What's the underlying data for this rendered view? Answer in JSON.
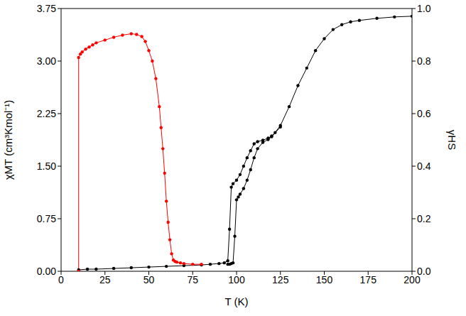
{
  "chart_data": {
    "type": "line",
    "x_label": "T (K)",
    "y_label": "χMT (cm³Kmol⁻¹)",
    "y2_label": "γHS",
    "xlim": [
      0,
      200
    ],
    "xticks": [
      0,
      25,
      50,
      75,
      100,
      125,
      150,
      175,
      200
    ],
    "ylim": [
      0,
      3.75
    ],
    "yticks": [
      {
        "value": 0,
        "label": "0.00"
      },
      0.75,
      {
        "value": 1.5,
        "label": "1.50"
      },
      2.25,
      {
        "value": 3,
        "label": "3.00"
      },
      3.75
    ],
    "y2lim": [
      0,
      1
    ],
    "y2ticks": [
      {
        "value": 0,
        "label": "0.0"
      },
      0.2,
      0.4,
      0.6,
      0.8,
      {
        "value": 1,
        "label": "1.0"
      }
    ],
    "grid": false,
    "series": [
      {
        "color": "#000000",
        "marker": "circle",
        "line_style": "solid",
        "x": [
          10,
          15,
          20,
          30,
          40,
          50,
          60,
          70,
          80,
          85,
          90,
          93,
          95,
          96,
          97,
          98,
          100,
          102,
          104,
          106,
          108,
          110,
          112,
          115,
          118,
          120,
          122,
          125,
          130,
          135,
          140,
          145,
          150,
          155,
          160,
          165,
          170,
          180,
          190,
          200
        ],
        "values": [
          0.02,
          0.03,
          0.03,
          0.04,
          0.05,
          0.06,
          0.07,
          0.08,
          0.09,
          0.1,
          0.11,
          0.12,
          0.15,
          0.6,
          1.2,
          1.25,
          1.3,
          1.38,
          1.5,
          1.62,
          1.72,
          1.82,
          1.85,
          1.87,
          1.9,
          1.93,
          1.98,
          2.08,
          2.35,
          2.65,
          2.9,
          3.15,
          3.32,
          3.45,
          3.52,
          3.56,
          3.58,
          3.61,
          3.63,
          3.64
        ]
      },
      {
        "color": "#000000",
        "marker": "circle",
        "line_style": "solid",
        "x": [
          95,
          96,
          97,
          98,
          99,
          100,
          101,
          102,
          104,
          106,
          108,
          110,
          112,
          115,
          118,
          120,
          125
        ],
        "values": [
          0.1,
          0.1,
          0.11,
          0.12,
          0.5,
          1.02,
          1.06,
          1.1,
          1.18,
          1.3,
          1.45,
          1.62,
          1.75,
          1.84,
          1.88,
          1.92,
          2.06
        ]
      },
      {
        "color": "#ff0000",
        "marker": "circle",
        "line_style": "solid",
        "x": [
          10,
          10,
          11,
          12,
          14,
          16,
          18,
          20,
          25,
          30,
          35,
          40,
          43,
          46,
          48,
          50,
          52,
          54,
          56,
          57,
          58,
          59,
          60,
          61,
          62,
          63,
          64,
          65,
          66,
          68,
          70,
          75,
          80
        ],
        "values": [
          0,
          3.05,
          3.1,
          3.13,
          3.17,
          3.2,
          3.23,
          3.26,
          3.3,
          3.34,
          3.37,
          3.39,
          3.38,
          3.35,
          3.28,
          3.15,
          3.0,
          2.75,
          2.35,
          2.05,
          1.75,
          1.4,
          1.0,
          0.7,
          0.45,
          0.25,
          0.16,
          0.14,
          0.13,
          0.12,
          0.11,
          0.1,
          0.1
        ]
      }
    ]
  }
}
